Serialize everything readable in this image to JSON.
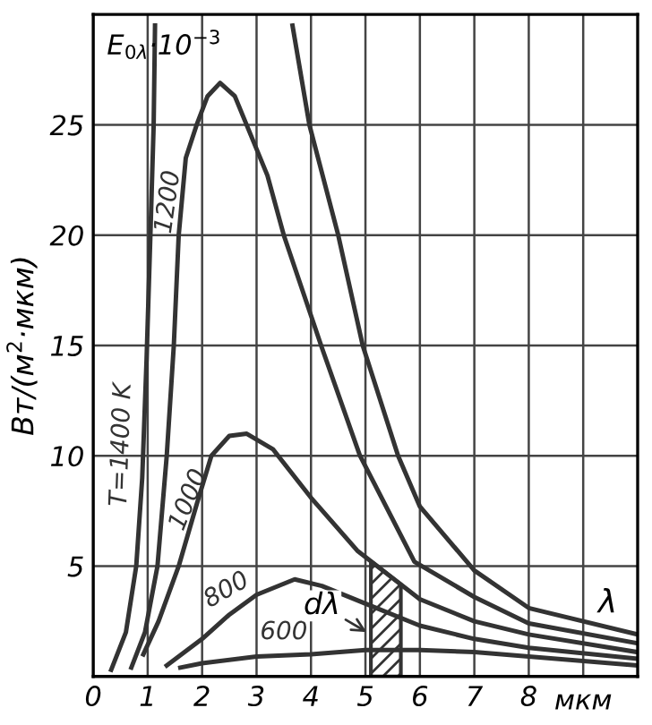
{
  "chart_data": {
    "type": "line",
    "ylabel": "Вт/(м$^{2}$·мкм)",
    "xlabel": "мкм",
    "annotations": [
      "E$_{0λ}$·10$^{−3}$",
      "λ",
      {
        "text": "dλ",
        "x": 5.1,
        "y": 1.9
      }
    ],
    "xlim": [
      0,
      10
    ],
    "ylim": [
      0,
      30
    ],
    "xticks": [
      0,
      1,
      2,
      3,
      4,
      5,
      6,
      7,
      8,
      {
        "value": 9,
        "label": null
      }
    ],
    "yticks": [
      5,
      10,
      15,
      20,
      25
    ],
    "grid": true,
    "marker": "none",
    "line_style": "solid",
    "bands": [
      {
        "axis": "x",
        "from": 5.1,
        "to": 5.65,
        "label": null,
        "color": "#333333"
      }
    ],
    "series": [
      {
        "name": "T=1400 K",
        "color": "#333333",
        "x": [
          0.33,
          0.6,
          0.79,
          0.9,
          0.98,
          1.05,
          1.11,
          1.135,
          2.4,
          3.66,
          3.97,
          4.5,
          4.95,
          5.6,
          6.0,
          7.0,
          8.0,
          10.0
        ],
        "values": [
          0.3,
          2,
          5,
          9,
          14.4,
          20,
          25,
          29.5,
          null,
          29.5,
          25,
          20,
          15,
          10,
          7.7,
          4.8,
          3.1,
          1.9
        ]
      },
      {
        "name": "1200",
        "color": "#333333",
        "x": [
          0.7,
          0.95,
          1.18,
          1.35,
          1.48,
          1.57,
          1.7,
          1.9,
          2.1,
          2.33,
          2.6,
          3.2,
          3.5,
          4.2,
          4.9,
          5.9,
          7.0,
          8.0,
          10.0
        ],
        "values": [
          0.4,
          2,
          5,
          10,
          15,
          20,
          23.5,
          25,
          26.3,
          26.9,
          26.3,
          22.7,
          20,
          14.9,
          10,
          5.2,
          3.6,
          2.4,
          1.5
        ]
      },
      {
        "name": "1000",
        "color": "#333333",
        "x": [
          0.92,
          1.2,
          1.57,
          1.9,
          2.17,
          2.5,
          2.82,
          3.3,
          4.0,
          4.85,
          6.0,
          7.0,
          8.0,
          10.0
        ],
        "values": [
          1,
          2.5,
          5,
          7.8,
          10,
          10.9,
          11,
          10.3,
          8.1,
          5.7,
          3.5,
          2.5,
          1.9,
          1.1
        ]
      },
      {
        "name": "800",
        "color": "#333333",
        "x": [
          1.35,
          2.0,
          2.5,
          3.0,
          3.7,
          4.2,
          5.0,
          6.0,
          7.0,
          8.0,
          10.0
        ],
        "values": [
          0.5,
          1.7,
          2.8,
          3.7,
          4.4,
          4.1,
          3.3,
          2.3,
          1.7,
          1.3,
          0.8
        ]
      },
      {
        "name": "600",
        "color": "#333333",
        "x": [
          1.6,
          2.0,
          3.0,
          4.0,
          5.0,
          6.0,
          7.0,
          8.0,
          10.0
        ],
        "values": [
          0.4,
          0.6,
          0.9,
          1.0,
          1.2,
          1.2,
          1.1,
          0.9,
          0.5
        ]
      }
    ]
  }
}
